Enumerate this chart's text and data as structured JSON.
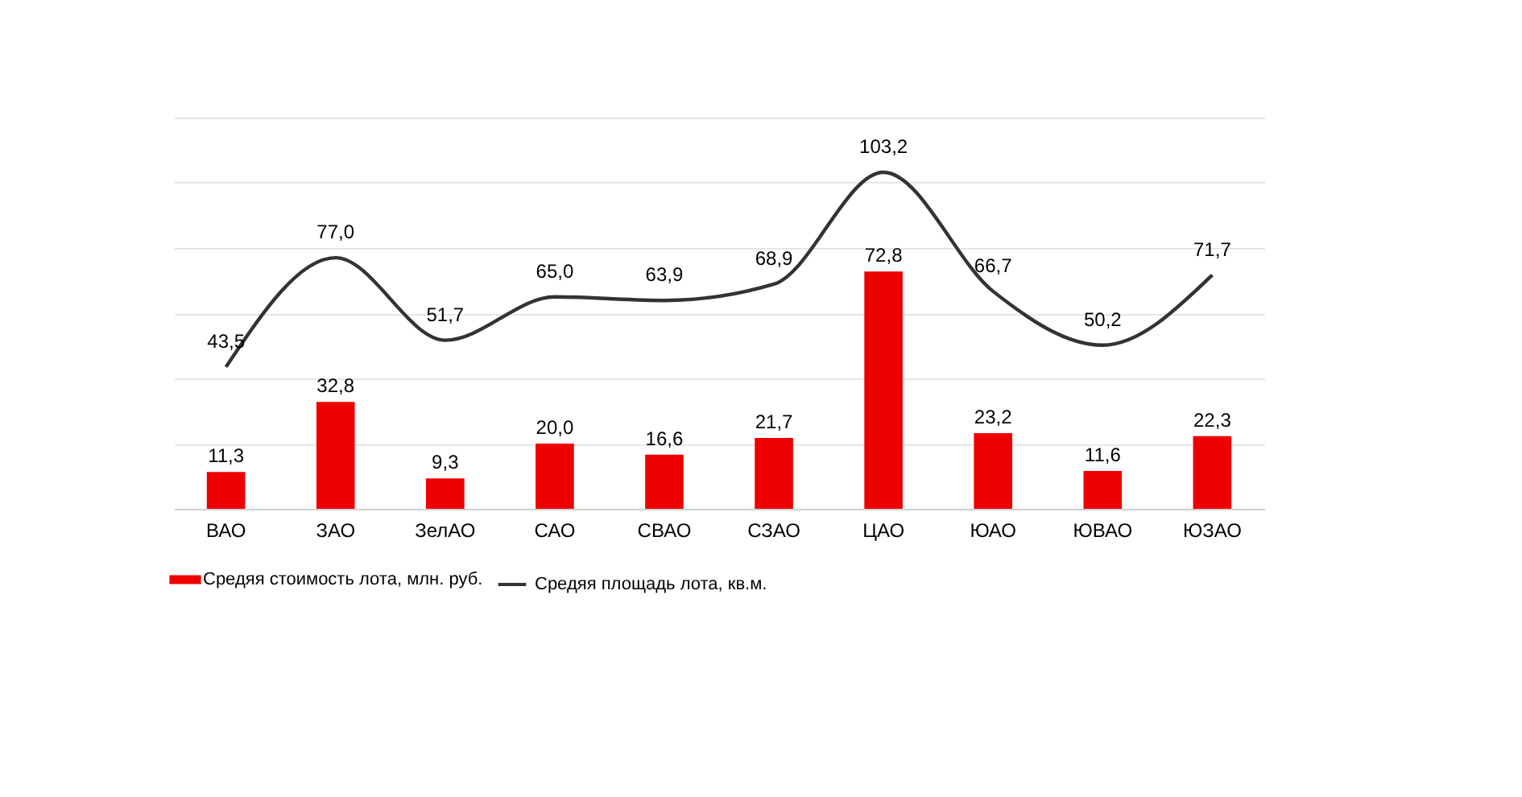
{
  "chart_data": {
    "type": "bar",
    "categories": [
      "ВАО",
      "ЗАО",
      "ЗелАО",
      "САО",
      "СВАО",
      "СЗАО",
      "ЦАО",
      "ЮАО",
      "ЮВАО",
      "ЮЗАО"
    ],
    "series": [
      {
        "name": "Средяя стоимость лота, млн. руб.",
        "color": "#ee0000",
        "values": [
          11.3,
          32.8,
          9.3,
          20.0,
          16.6,
          21.7,
          72.8,
          23.2,
          11.6,
          22.3
        ],
        "value_labels": [
          "11,3",
          "32,8",
          "9,3",
          "20,0",
          "16,6",
          "21,7",
          "72,8",
          "23,2",
          "11,6",
          "22,3"
        ]
      },
      {
        "name": "Средяя площадь лота, кв.м.",
        "type": "line",
        "color": "#333333",
        "values": [
          43.5,
          77.0,
          51.7,
          65.0,
          63.9,
          68.9,
          103.2,
          66.7,
          50.2,
          71.7
        ],
        "value_labels": [
          "43,5",
          "77,0",
          "51,7",
          "65,0",
          "63,9",
          "68,9",
          "103,2",
          "66,7",
          "50,2",
          "71,7"
        ]
      }
    ],
    "ylim": [
      0,
      120
    ],
    "yticks": [
      {
        "value": 0,
        "label": null
      },
      {
        "value": 20,
        "label": null
      },
      {
        "value": 40,
        "label": null
      },
      {
        "value": 60,
        "label": null
      },
      {
        "value": 80,
        "label": null
      },
      {
        "value": 100,
        "label": null
      },
      {
        "value": 120,
        "label": null
      }
    ],
    "grid": "y",
    "legend": "bottom",
    "tick_labels": "x",
    "line_style": "solid",
    "marker": "none"
  }
}
